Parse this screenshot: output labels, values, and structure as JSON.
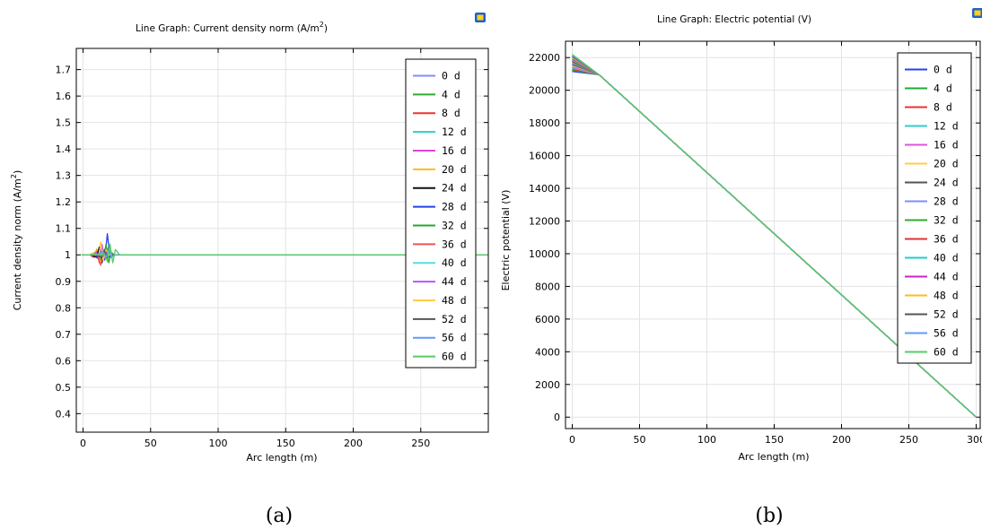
{
  "panels": [
    {
      "caption": "(a)",
      "title_prefix": "Line Graph: Current density norm (A/m",
      "title_sup": "2",
      "title_suffix": ")",
      "ylabel_prefix": "Current density norm (A/m",
      "ylabel_sup": "2",
      "ylabel_suffix": ")"
    },
    {
      "caption": "(b)",
      "title_prefix": "Line Graph: Electric potential (V)",
      "title_sup": "",
      "title_suffix": "",
      "ylabel_prefix": "Electric potential (V)",
      "ylabel_sup": "",
      "ylabel_suffix": ""
    }
  ],
  "chart_data": [
    {
      "type": "line",
      "title": "Line Graph: Current density norm (A/m2)",
      "xlabel": "Arc length (m)",
      "ylabel": "Current density norm (A/m2)",
      "xlim": [
        -5,
        300
      ],
      "ylim": [
        0.33,
        1.78
      ],
      "xticks": [
        0,
        50,
        100,
        150,
        200,
        250
      ],
      "yticks": [
        0.4,
        0.5,
        0.6,
        0.7,
        0.8,
        0.9,
        1,
        1.1,
        1.2,
        1.3,
        1.4,
        1.5,
        1.6,
        1.7
      ],
      "ytick_labels": [
        "0.4",
        "0.5",
        "0.6",
        "0.7",
        "0.8",
        "0.9",
        "1",
        "1.1",
        "1.2",
        "1.3",
        "1.4",
        "1.5",
        "1.6",
        "1.7"
      ],
      "grid": true,
      "legend_position": "top-right",
      "series_names": [
        "0 d",
        "4 d",
        "8 d",
        "12 d",
        "16 d",
        "20 d",
        "24 d",
        "28 d",
        "32 d",
        "36 d",
        "40 d",
        "44 d",
        "48 d",
        "52 d",
        "56 d",
        "60 d"
      ],
      "colors": [
        "#7f8cff",
        "#33aa33",
        "#ee3333",
        "#33cccc",
        "#dd44dd",
        "#ffbb22",
        "#111111",
        "#2244ee",
        "#22aa33",
        "#ee5555",
        "#55dddd",
        "#bb55ee",
        "#ffcc44",
        "#555555",
        "#6699ff",
        "#55cc66"
      ],
      "series_points": [
        [
          [
            -1,
            1
          ],
          [
            5,
            1
          ],
          [
            8,
            1.005
          ],
          [
            10,
            0.995
          ],
          [
            12,
            1.01
          ],
          [
            14,
            0.99
          ],
          [
            16,
            1.0
          ],
          [
            18,
            1.005
          ],
          [
            22,
            1.0
          ],
          [
            300,
            1.0
          ]
        ],
        [
          [
            -1,
            1
          ],
          [
            5,
            1
          ],
          [
            9,
            1.01
          ],
          [
            11,
            0.985
          ],
          [
            13,
            1.02
          ],
          [
            15,
            0.99
          ],
          [
            17,
            1.0
          ],
          [
            19,
            1.03
          ],
          [
            21,
            0.99
          ],
          [
            23,
            1.0
          ],
          [
            300,
            1.0
          ]
        ],
        [
          [
            -1,
            1
          ],
          [
            5,
            1
          ],
          [
            8,
            0.99
          ],
          [
            10,
            1.02
          ],
          [
            12,
            0.97
          ],
          [
            14,
            1.01
          ],
          [
            16,
            1.0
          ],
          [
            22,
            1.0
          ],
          [
            300,
            1.0
          ]
        ],
        [
          [
            -1,
            1
          ],
          [
            6,
            1
          ],
          [
            9,
            1.005
          ],
          [
            11,
            0.99
          ],
          [
            13,
            1.015
          ],
          [
            15,
            0.995
          ],
          [
            20,
            1.0
          ],
          [
            300,
            1.0
          ]
        ],
        [
          [
            -1,
            1
          ],
          [
            6,
            1
          ],
          [
            10,
            1.01
          ],
          [
            12,
            0.98
          ],
          [
            14,
            1.03
          ],
          [
            16,
            0.99
          ],
          [
            18,
            1.0
          ],
          [
            300,
            1.0
          ]
        ],
        [
          [
            -1,
            1
          ],
          [
            6,
            1
          ],
          [
            11,
            1.02
          ],
          [
            13,
            0.98
          ],
          [
            15,
            1.01
          ],
          [
            17,
            0.995
          ],
          [
            20,
            1.0
          ],
          [
            300,
            1.0
          ]
        ],
        [
          [
            -1,
            1
          ],
          [
            6,
            1
          ],
          [
            10,
            0.99
          ],
          [
            12,
            1.03
          ],
          [
            14,
            0.97
          ],
          [
            16,
            1.02
          ],
          [
            18,
            1.0
          ],
          [
            300,
            1.0
          ]
        ],
        [
          [
            -1,
            1
          ],
          [
            7,
            1
          ],
          [
            12,
            0.99
          ],
          [
            14,
            1.02
          ],
          [
            16,
            0.98
          ],
          [
            18,
            1.08
          ],
          [
            20,
            0.99
          ],
          [
            22,
            1.0
          ],
          [
            300,
            1.0
          ]
        ],
        [
          [
            -1,
            1
          ],
          [
            7,
            1
          ],
          [
            12,
            1.0
          ],
          [
            15,
            0.98
          ],
          [
            17,
            1.04
          ],
          [
            19,
            0.97
          ],
          [
            21,
            1.01
          ],
          [
            23,
            1.0
          ],
          [
            300,
            1.0
          ]
        ],
        [
          [
            -1,
            1
          ],
          [
            7,
            1
          ],
          [
            11,
            1.0
          ],
          [
            13,
            0.96
          ],
          [
            15,
            1.01
          ],
          [
            17,
            0.99
          ],
          [
            20,
            1.0
          ],
          [
            300,
            1.0
          ]
        ],
        [
          [
            -1,
            1
          ],
          [
            8,
            1
          ],
          [
            13,
            1.005
          ],
          [
            15,
            0.985
          ],
          [
            18,
            1.01
          ],
          [
            20,
            0.995
          ],
          [
            24,
            1.0
          ],
          [
            300,
            1.0
          ]
        ],
        [
          [
            -1,
            1
          ],
          [
            8,
            1
          ],
          [
            12,
            1.0
          ],
          [
            14,
            1.04
          ],
          [
            16,
            0.99
          ],
          [
            18,
            1.01
          ],
          [
            21,
            1.0
          ],
          [
            300,
            1.0
          ]
        ],
        [
          [
            -1,
            1
          ],
          [
            8,
            1
          ],
          [
            12,
            1.0
          ],
          [
            13,
            1.05
          ],
          [
            15,
            0.98
          ],
          [
            17,
            1.02
          ],
          [
            19,
            1.0
          ],
          [
            300,
            1.0
          ]
        ],
        [
          [
            -1,
            1
          ],
          [
            9,
            1
          ],
          [
            14,
            0.99
          ],
          [
            16,
            1.015
          ],
          [
            18,
            0.985
          ],
          [
            21,
            1.0
          ],
          [
            300,
            1.0
          ]
        ],
        [
          [
            -1,
            1
          ],
          [
            9,
            1
          ],
          [
            15,
            1.01
          ],
          [
            17,
            0.99
          ],
          [
            19,
            1.02
          ],
          [
            21,
            0.99
          ],
          [
            24,
            1.0
          ],
          [
            300,
            1.0
          ]
        ],
        [
          [
            -1,
            1
          ],
          [
            9,
            1
          ],
          [
            16,
            1.0
          ],
          [
            18,
            0.975
          ],
          [
            20,
            1.04
          ],
          [
            22,
            0.97
          ],
          [
            24,
            1.02
          ],
          [
            27,
            1.0
          ],
          [
            300,
            1.0
          ]
        ]
      ]
    },
    {
      "type": "line",
      "title": "Line Graph: Electric potential (V)",
      "xlabel": "Arc length (m)",
      "ylabel": "Electric potential (V)",
      "xlim": [
        -5,
        303
      ],
      "ylim": [
        -700,
        23000
      ],
      "xticks": [
        0,
        50,
        100,
        150,
        200,
        250,
        300
      ],
      "xtick_labels": [
        "0",
        "50",
        "100",
        "150",
        "200",
        "250",
        "300"
      ],
      "yticks": [
        0,
        2000,
        4000,
        6000,
        8000,
        10000,
        12000,
        14000,
        16000,
        18000,
        20000,
        22000
      ],
      "ytick_labels": [
        "0",
        "2000",
        "4000",
        "6000",
        "8000",
        "10000",
        "12000",
        "14000",
        "16000",
        "18000",
        "20000",
        "22000"
      ],
      "grid": true,
      "legend_position": "top-right",
      "series_names": [
        "0 d",
        "4 d",
        "8 d",
        "12 d",
        "16 d",
        "20 d",
        "24 d",
        "28 d",
        "32 d",
        "36 d",
        "40 d",
        "44 d",
        "48 d",
        "52 d",
        "56 d",
        "60 d"
      ],
      "colors": [
        "#2244ee",
        "#22aa33",
        "#ee3333",
        "#33cccc",
        "#dd55dd",
        "#ffcc44",
        "#555555",
        "#7f8cff",
        "#33aa33",
        "#dd3333",
        "#22cccc",
        "#cc22cc",
        "#ffbb22",
        "#555555",
        "#6699ff",
        "#55cc66"
      ],
      "start_values": [
        21150,
        21220,
        21290,
        21360,
        21430,
        21500,
        21570,
        21640,
        21710,
        21780,
        21850,
        21920,
        21990,
        22060,
        22130,
        22200
      ],
      "merge_point": [
        20,
        20950
      ],
      "end_point": [
        300,
        0
      ]
    }
  ]
}
